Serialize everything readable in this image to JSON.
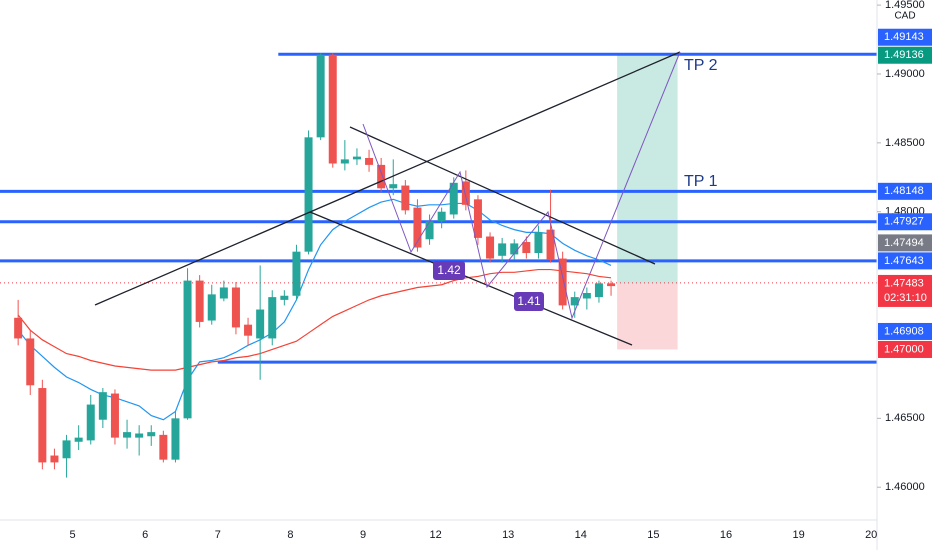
{
  "chart_data": {
    "type": "candlestick",
    "currency": "CAD",
    "categories": [
      null,
      null,
      null,
      null,
      null,
      null,
      "5",
      null,
      null,
      null,
      null,
      null,
      "6",
      null,
      null,
      null,
      null,
      null,
      "7",
      null,
      null,
      null,
      null,
      null,
      "8",
      null,
      null,
      null,
      null,
      null,
      "9",
      null,
      null,
      null,
      null,
      null,
      "12",
      null,
      null,
      null,
      null,
      null,
      "13",
      null,
      null,
      null,
      null,
      null,
      "14",
      null,
      null,
      null,
      null,
      null,
      "15",
      null,
      null,
      null,
      null,
      null,
      "16",
      null,
      null,
      null,
      null,
      null,
      "19",
      null,
      null,
      null,
      null,
      null,
      "20"
    ],
    "open": [
      null,
      1.4723,
      1.4708,
      1.4672,
      1.4623,
      1.4621,
      1.4633,
      1.4634,
      1.4649,
      1.4668,
      1.4636,
      1.4636,
      1.4637,
      1.4638,
      1.462,
      1.465,
      1.475,
      1.4721,
      1.4737,
      1.4745,
      1.4718,
      1.4708,
      1.4708,
      1.4736,
      1.4739,
      1.4771,
      1.4854,
      1.4914,
      1.4835,
      1.4838,
      1.4839,
      1.4834,
      1.4817,
      1.4819,
      1.4803,
      1.478,
      1.4793,
      1.4798,
      1.4822,
      1.4809,
      1.4782,
      1.4768,
      1.4769,
      1.4778,
      1.477,
      1.4787,
      1.4766,
      1.4732,
      1.4737,
      1.4738,
      1.4748,
      null,
      null,
      null,
      null,
      null,
      null,
      null,
      null,
      null,
      null,
      null,
      null,
      null,
      null,
      null,
      null,
      null,
      null,
      null,
      null,
      null,
      null
    ],
    "high": [
      null,
      1.4736,
      1.4714,
      1.4678,
      1.4628,
      1.4638,
      1.4645,
      1.4667,
      1.4672,
      1.4671,
      1.4649,
      1.4645,
      1.4645,
      1.4641,
      1.4655,
      1.4759,
      1.4754,
      1.4747,
      1.475,
      1.4749,
      1.4723,
      1.4761,
      1.4743,
      1.4743,
      1.4776,
      1.4859,
      1.4915,
      1.4915,
      1.4852,
      1.4846,
      1.4845,
      1.4839,
      1.4838,
      1.4823,
      1.4809,
      1.4798,
      1.4803,
      1.4825,
      1.483,
      1.4812,
      1.4785,
      1.4781,
      1.478,
      1.4782,
      1.479,
      1.4816,
      1.4771,
      1.4742,
      1.4745,
      1.475,
      1.475,
      null,
      null,
      null,
      null,
      null,
      null,
      null,
      null,
      null,
      null,
      null,
      null,
      null,
      null,
      null,
      null,
      null,
      null,
      null,
      null,
      null,
      null
    ],
    "low": [
      null,
      1.4703,
      1.4667,
      1.4613,
      1.4613,
      1.4607,
      1.4627,
      1.4631,
      1.4643,
      1.4631,
      1.4628,
      1.4623,
      1.463,
      1.4618,
      1.4618,
      1.4649,
      1.4716,
      1.4718,
      1.4735,
      1.4711,
      1.4703,
      1.4678,
      1.4703,
      1.4732,
      1.4736,
      1.4769,
      1.4852,
      1.4832,
      1.483,
      1.4834,
      1.4829,
      1.4814,
      1.4812,
      1.4798,
      1.4771,
      1.4776,
      1.4788,
      1.4795,
      1.4801,
      1.4776,
      1.4763,
      1.4763,
      1.4765,
      1.4766,
      1.4766,
      1.4763,
      1.4729,
      1.4723,
      1.4729,
      1.4734,
      1.4739,
      null,
      null,
      null,
      null,
      null,
      null,
      null,
      null,
      null,
      null,
      null,
      null,
      null,
      null,
      null,
      null,
      null,
      null,
      null,
      null,
      null,
      null
    ],
    "close": [
      null,
      1.4708,
      1.4674,
      1.4618,
      1.4618,
      1.4634,
      1.4636,
      1.466,
      1.4669,
      1.4636,
      1.464,
      1.4639,
      1.464,
      1.462,
      1.465,
      1.475,
      1.472,
      1.474,
      1.4745,
      1.4716,
      1.471,
      1.4729,
      1.4738,
      1.4739,
      1.4771,
      1.4854,
      1.4914,
      1.4835,
      1.4838,
      1.484,
      1.4834,
      1.4817,
      1.482,
      1.4801,
      1.4774,
      1.4793,
      1.48,
      1.4821,
      1.4805,
      1.4781,
      1.4766,
      1.4777,
      1.4777,
      1.477,
      1.4785,
      1.4765,
      1.4732,
      1.4738,
      1.4741,
      1.4748,
      1.4746,
      null,
      null,
      null,
      null,
      null,
      null,
      null,
      null,
      null,
      null,
      null,
      null,
      null,
      null,
      null,
      null,
      null,
      null,
      null,
      null,
      null,
      null
    ],
    "up_color": "#26a69a",
    "down_color": "#ef5350",
    "moving_averages": [
      {
        "color": "#2196f3",
        "values": [
          null,
          1.4714,
          1.4703,
          1.4695,
          1.4687,
          1.468,
          1.4676,
          1.4671,
          1.4667,
          1.4665,
          1.4662,
          1.4659,
          1.4652,
          1.4649,
          1.4655,
          1.4678,
          1.4691,
          1.4692,
          1.4694,
          1.4698,
          1.4703,
          1.4707,
          1.4712,
          1.472,
          1.4736,
          1.4758,
          1.4776,
          1.4787,
          1.4793,
          1.4798,
          1.4803,
          1.4807,
          1.4809,
          1.4806,
          1.4804,
          1.4805,
          1.4805,
          1.4806,
          1.4806,
          1.4801,
          1.4794,
          1.479,
          1.4787,
          1.4785,
          1.4785,
          1.4784,
          1.4777,
          1.4772,
          1.4768,
          1.4765,
          1.4761,
          null,
          null,
          null,
          null,
          null,
          null,
          null,
          null,
          null,
          null,
          null,
          null,
          null,
          null,
          null,
          null,
          null,
          null,
          null,
          null,
          null,
          null
        ]
      },
      {
        "color": "#f44336",
        "values": [
          null,
          1.4725,
          1.4714,
          1.4707,
          1.4702,
          1.4697,
          1.4695,
          1.4692,
          1.469,
          1.4688,
          1.4687,
          1.4686,
          1.4685,
          1.4685,
          1.4685,
          1.4687,
          1.4689,
          1.4691,
          1.4692,
          1.4694,
          1.4695,
          1.4697,
          1.47,
          1.4703,
          1.4706,
          1.4712,
          1.4718,
          1.4724,
          1.4728,
          1.4732,
          1.4736,
          1.4739,
          1.4741,
          1.4743,
          1.4745,
          1.4746,
          1.4747,
          1.475,
          1.4752,
          1.4753,
          1.4755,
          1.4756,
          1.4756,
          1.4757,
          1.4758,
          1.4758,
          1.4757,
          1.4756,
          1.4755,
          1.4753,
          1.4752,
          null,
          null,
          null,
          null,
          null,
          null,
          null,
          null,
          null,
          null,
          null,
          null,
          null,
          null,
          null,
          null,
          null,
          null,
          null,
          null,
          null,
          null
        ]
      }
    ],
    "ylim": [
      1.45762,
      1.49537
    ],
    "yticks": [
      {
        "value": 1.495,
        "label": "1.49500"
      },
      {
        "value": 1.49,
        "label": "1.49000"
      },
      {
        "value": 1.485,
        "label": "1.48500"
      },
      {
        "value": 1.48,
        "label": "1.48000"
      },
      {
        "value": 1.465,
        "label": "1.46500"
      },
      {
        "value": 1.46,
        "label": "1.46000"
      }
    ],
    "level_color": "#2962ff",
    "levels": [
      {
        "value": 1.49143,
        "label": "1.49143",
        "from": 23
      },
      {
        "value": 1.48148,
        "label": "1.48148"
      },
      {
        "value": 1.47927,
        "label": "1.47927"
      },
      {
        "value": 1.47643,
        "label": "1.47643"
      },
      {
        "value": 1.46908,
        "label": "1.46908",
        "from": 18
      }
    ],
    "price_tags": [
      {
        "value": 1.47494,
        "label": "1.47494",
        "color": "#787b86"
      }
    ],
    "position": {
      "entry": {
        "value": 1.47483,
        "label": "1.47483"
      },
      "countdown": "02:31:10",
      "target": {
        "value": 1.49136,
        "label": "1.49136"
      },
      "stop": {
        "value": 1.47,
        "label": "1.47000"
      },
      "from": 51,
      "to": 56,
      "target_color": "#089981",
      "stop_color": "#f23645"
    },
    "annotations": [
      "TP 2",
      "TP 1",
      "1.42",
      "1.41"
    ]
  }
}
